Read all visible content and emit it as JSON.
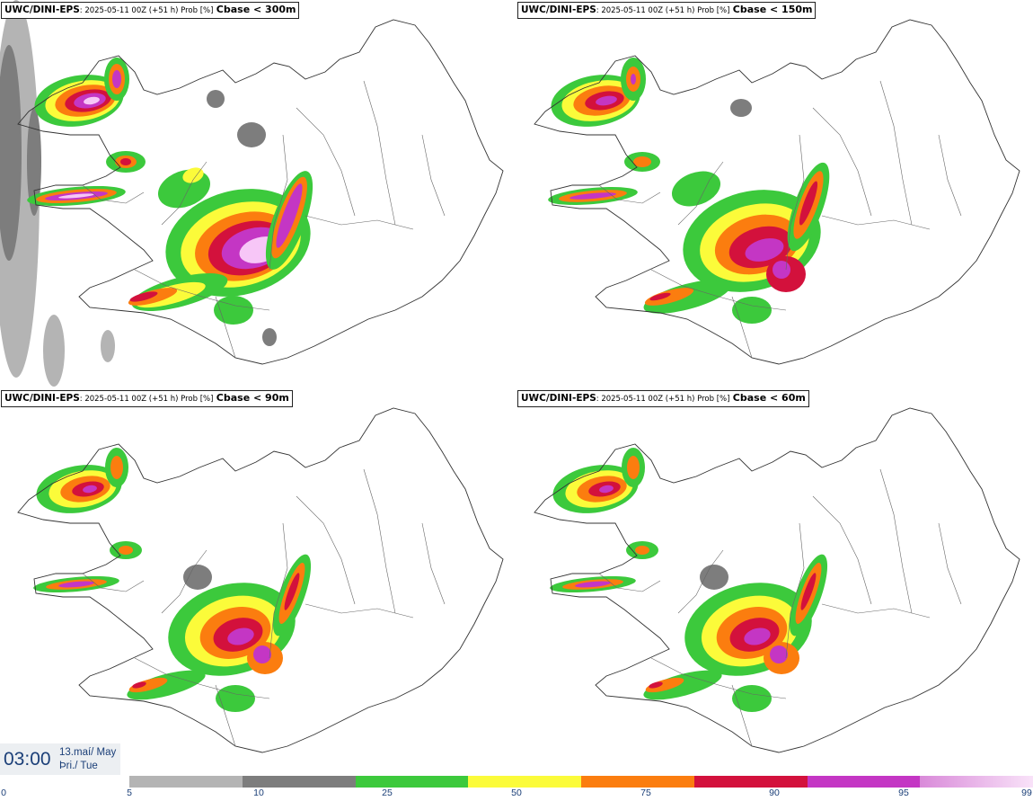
{
  "panels": [
    {
      "model": "UWC/DINI-EPS",
      "run": ": 2025-05-11 00Z (+51 h) Prob [%]",
      "param": "Cbase < 300m"
    },
    {
      "model": "UWC/DINI-EPS",
      "run": ": 2025-05-11 00Z (+51 h) Prob [%]",
      "param": "Cbase < 150m"
    },
    {
      "model": "UWC/DINI-EPS",
      "run": ": 2025-05-11 00Z (+51 h) Prob [%]",
      "param": "Cbase < 90m"
    },
    {
      "model": "UWC/DINI-EPS",
      "run": ": 2025-05-11 00Z (+51 h) Prob [%]",
      "param": "Cbase < 60m"
    }
  ],
  "valid_time": {
    "time": "03:00",
    "date_line1": "13.maí/ May",
    "date_line2": "Þri./ Tue"
  },
  "legend": {
    "ticks": [
      "0",
      "5",
      "10",
      "25",
      "50",
      "75",
      "90",
      "95",
      "99"
    ],
    "colors": [
      "#b4b4b4",
      "#7d7d7d",
      "#3cc93c",
      "#fbfb3a",
      "#fb7d0f",
      "#d3113c",
      "#c436c4",
      "#f7c6f7"
    ]
  }
}
